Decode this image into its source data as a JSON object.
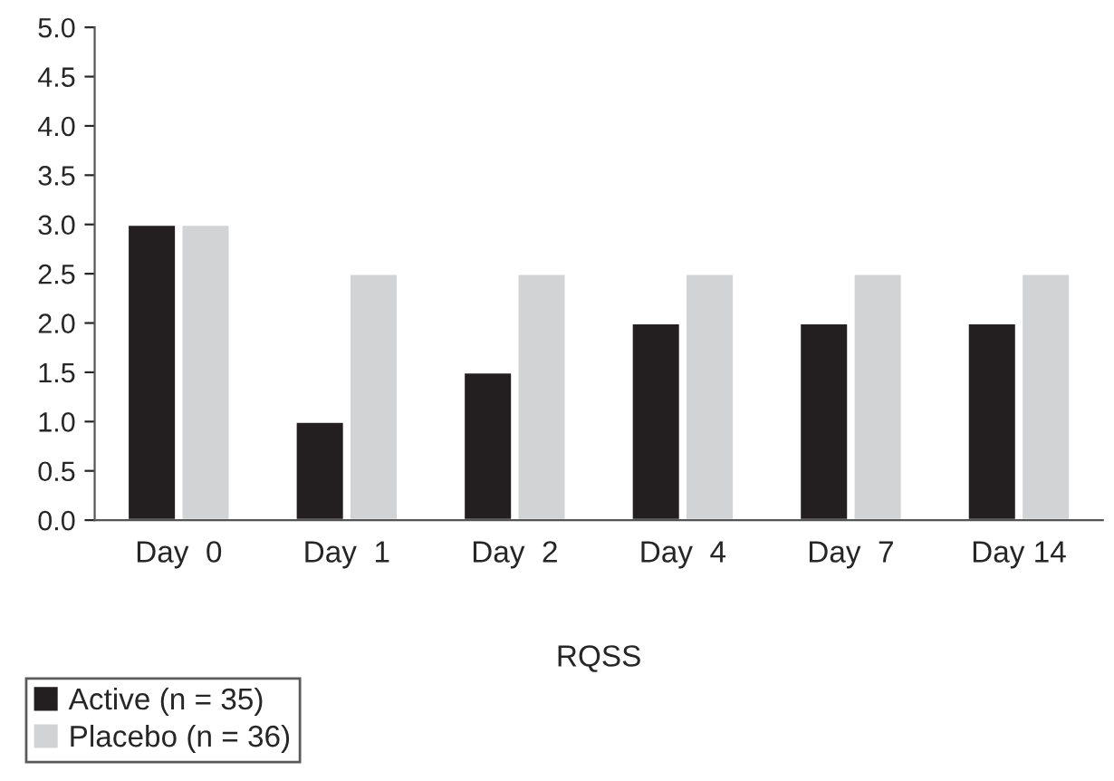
{
  "chart_data": {
    "type": "bar",
    "xlabel": "RQSS",
    "categories": [
      "Day  0",
      "Day  1",
      "Day  2",
      "Day  4",
      "Day  7",
      "Day 14"
    ],
    "series": [
      {
        "name": "Active (n = 35)",
        "color": "#231f20",
        "values": [
          3.0,
          1.0,
          1.5,
          2.0,
          2.0,
          2.0
        ]
      },
      {
        "name": "Placebo (n = 36)",
        "color": "#d1d3d4",
        "values": [
          3.0,
          2.5,
          2.5,
          2.5,
          2.5,
          2.5
        ]
      }
    ],
    "ylim": [
      0,
      5
    ],
    "yticks": [
      {
        "value": 0,
        "label": "0.0"
      },
      {
        "value": 0.5,
        "label": "0.5"
      },
      {
        "value": 1,
        "label": "1.0"
      },
      {
        "value": 1.5,
        "label": "1.5"
      },
      {
        "value": 2,
        "label": "2.0"
      },
      {
        "value": 2.5,
        "label": "2.5"
      },
      {
        "value": 3,
        "label": "3.0"
      },
      {
        "value": 3.5,
        "label": "3.5"
      },
      {
        "value": 4,
        "label": "4.0"
      },
      {
        "value": 4.5,
        "label": "4.5"
      },
      {
        "value": 5,
        "label": "5.0"
      }
    ],
    "grid": false,
    "legend": "bottom left"
  }
}
